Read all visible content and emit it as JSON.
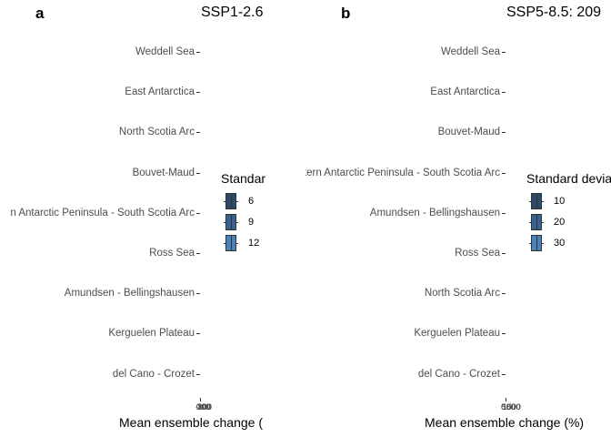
{
  "chart_data": [
    {
      "panel": "a",
      "type": "boxplot",
      "title": "SSP1-2.6",
      "xlabel": "Mean ensemble change (",
      "x_tick_labels": [
        "-100",
        "0",
        "100",
        "200",
        "300"
      ],
      "categories": [
        "Weddell Sea",
        "East Antarctica",
        "North Scotia Arc",
        "Bouvet-Maud",
        "n Antarctic Peninsula - South Scotia Arc",
        "Ross Sea",
        "Amundsen - Bellingshausen",
        "Kerguelen Plateau",
        "del Cano - Crozet"
      ],
      "legend": {
        "title": "Standar",
        "entries": [
          {
            "label": "6",
            "color": "#2b4a6b"
          },
          {
            "label": "9",
            "color": "#36638f"
          },
          {
            "label": "12",
            "color": "#4a82bb"
          }
        ]
      }
    },
    {
      "panel": "b",
      "type": "boxplot",
      "title": "SSP5-8.5: 209",
      "xlabel": "Mean ensemble change (%)",
      "x_tick_labels": [
        "0",
        "500",
        "1000",
        "1500"
      ],
      "categories": [
        "Weddell Sea",
        "East Antarctica",
        "Bouvet-Maud",
        "Western Antarctic Peninsula - South Scotia Arc",
        "Amundsen - Bellingshausen",
        "Ross Sea",
        "North Scotia Arc",
        "Kerguelen Plateau",
        "del Cano - Crozet"
      ],
      "legend": {
        "title": "Standard devia",
        "entries": [
          {
            "label": "10",
            "color": "#2b4a6b"
          },
          {
            "label": "20",
            "color": "#36638f"
          },
          {
            "label": "30",
            "color": "#4a82bb"
          }
        ]
      }
    }
  ]
}
